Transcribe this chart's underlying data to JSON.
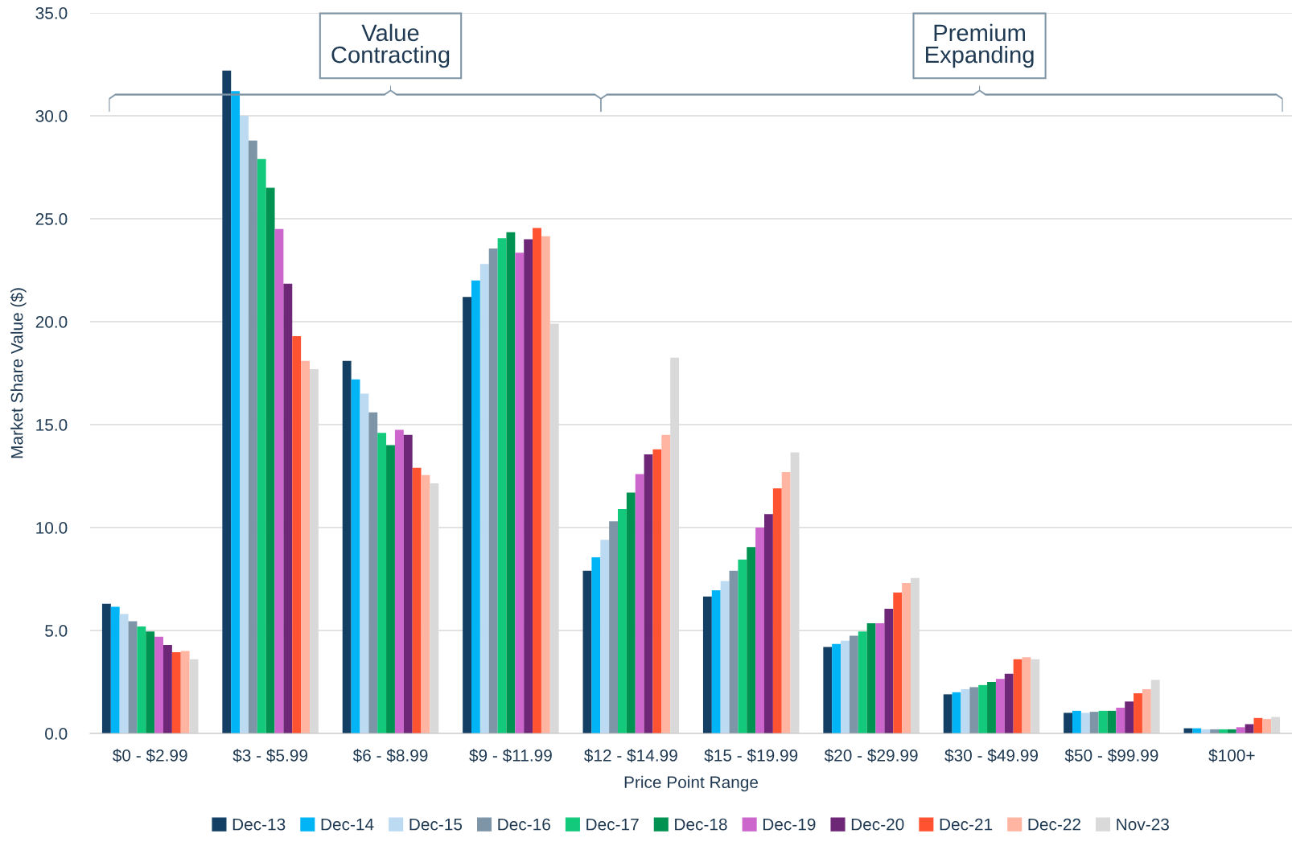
{
  "chart_data": {
    "type": "bar",
    "xlabel": "Price Point Range",
    "ylabel": "Market Share Value ($)",
    "categories": [
      "$0 - $2.99",
      "$3 - $5.99",
      "$6 - $8.99",
      "$9 - $11.99",
      "$12 - $14.99",
      "$15 - $19.99",
      "$20 - $29.99",
      "$30 - $49.99",
      "$50 - $99.99",
      "$100+"
    ],
    "series": [
      {
        "name": "Dec-13",
        "color": "#123f63",
        "values": [
          6.3,
          32.2,
          18.1,
          21.2,
          7.9,
          6.65,
          4.2,
          1.9,
          1.0,
          0.25
        ]
      },
      {
        "name": "Dec-14",
        "color": "#00b4f5",
        "values": [
          6.15,
          31.2,
          17.2,
          22.0,
          8.55,
          6.95,
          4.35,
          2.0,
          1.1,
          0.25
        ]
      },
      {
        "name": "Dec-15",
        "color": "#bcdaf2",
        "values": [
          5.8,
          30.0,
          16.5,
          22.8,
          9.4,
          7.4,
          4.5,
          2.15,
          1.0,
          0.2
        ]
      },
      {
        "name": "Dec-16",
        "color": "#7e95a8",
        "values": [
          5.45,
          28.8,
          15.6,
          23.55,
          10.3,
          7.9,
          4.75,
          2.25,
          1.05,
          0.2
        ]
      },
      {
        "name": "Dec-17",
        "color": "#13c97b",
        "values": [
          5.2,
          27.9,
          14.6,
          24.05,
          10.9,
          8.45,
          4.95,
          2.35,
          1.1,
          0.2
        ]
      },
      {
        "name": "Dec-18",
        "color": "#009250",
        "values": [
          4.95,
          26.5,
          14.0,
          24.35,
          11.7,
          9.05,
          5.35,
          2.5,
          1.1,
          0.2
        ]
      },
      {
        "name": "Dec-19",
        "color": "#cc66cc",
        "values": [
          4.7,
          24.5,
          14.75,
          23.35,
          12.6,
          10.0,
          5.35,
          2.65,
          1.25,
          0.3
        ]
      },
      {
        "name": "Dec-20",
        "color": "#6e2676",
        "values": [
          4.3,
          21.85,
          14.5,
          24.0,
          13.55,
          10.65,
          6.05,
          2.9,
          1.55,
          0.45
        ]
      },
      {
        "name": "Dec-21",
        "color": "#ff5230",
        "values": [
          3.95,
          19.3,
          12.9,
          24.55,
          13.8,
          11.9,
          6.85,
          3.6,
          1.95,
          0.75
        ]
      },
      {
        "name": "Dec-22",
        "color": "#ffb5a1",
        "values": [
          4.0,
          18.1,
          12.55,
          24.15,
          14.5,
          12.7,
          7.3,
          3.7,
          2.15,
          0.7
        ]
      },
      {
        "name": "Nov-23",
        "color": "#d9d9d9",
        "values": [
          3.6,
          17.7,
          12.15,
          19.9,
          18.25,
          13.65,
          7.55,
          3.6,
          2.6,
          0.8
        ]
      }
    ],
    "ylim": [
      0,
      35
    ],
    "yticks": [
      {
        "value": 0,
        "label": "0.0"
      },
      {
        "value": 5,
        "label": "5.0"
      },
      {
        "value": 10,
        "label": "10.0"
      },
      {
        "value": 15,
        "label": "15.0"
      },
      {
        "value": 20,
        "label": "20.0"
      },
      {
        "value": 25,
        "label": "25.0"
      },
      {
        "value": 30,
        "label": "30.0"
      },
      {
        "value": 35,
        "label": "35.0"
      }
    ],
    "grid": "y",
    "legend": "bottom",
    "annotations": [
      "Value\nContracting",
      "Premium\nExpanding"
    ]
  }
}
